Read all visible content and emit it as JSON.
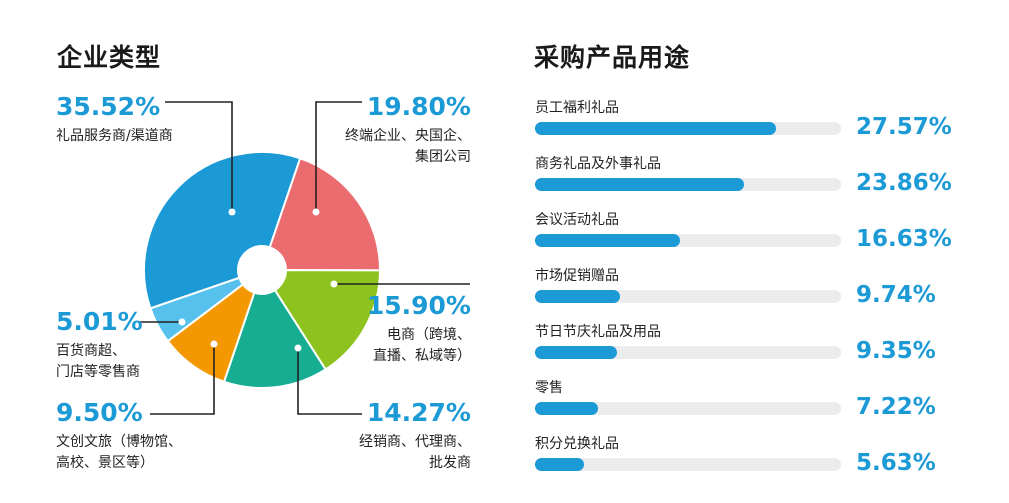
{
  "left_title": "企业类型",
  "right_title": "采购产品用途",
  "chart_data": [
    {
      "type": "pie",
      "title": "企业类型",
      "slices": [
        {
          "value": 35.52,
          "pct_label": "35.52%",
          "label_lines": [
            "礼品服务商/渠道商"
          ],
          "color": "#1b9ad6"
        },
        {
          "value": 19.8,
          "pct_label": "19.80%",
          "label_lines": [
            "终端企业、央国企、",
            "集团公司"
          ],
          "color": "#ea6c6f"
        },
        {
          "value": 15.9,
          "pct_label": "15.90%",
          "label_lines": [
            "电商（跨境、",
            "直播、私域等）"
          ],
          "color": "#8dc21f"
        },
        {
          "value": 14.27,
          "pct_label": "14.27%",
          "label_lines": [
            "经销商、代理商、",
            "批发商"
          ],
          "color": "#16ad93"
        },
        {
          "value": 9.5,
          "pct_label": "9.50%",
          "label_lines": [
            "文创文旅（博物馆、",
            "高校、景区等）"
          ],
          "color": "#f39800"
        },
        {
          "value": 5.01,
          "pct_label": "5.01%",
          "label_lines": [
            "百货商超、",
            "门店等零售商"
          ],
          "color": "#56c1ed"
        }
      ]
    },
    {
      "type": "bar",
      "title": "采购产品用途",
      "max": 100,
      "bar_color": "#1b9ad6",
      "track_color": "#ececec",
      "items": [
        {
          "label": "员工福利礼品",
          "value": 27.57,
          "value_label": "27.57%"
        },
        {
          "label": "商务礼品及外事礼品",
          "value": 23.86,
          "value_label": "23.86%"
        },
        {
          "label": "会议活动礼品",
          "value": 16.63,
          "value_label": "16.63%"
        },
        {
          "label": "市场促销赠品",
          "value": 9.74,
          "value_label": "9.74%"
        },
        {
          "label": "节日节庆礼品及用品",
          "value": 9.35,
          "value_label": "9.35%"
        },
        {
          "label": "零售",
          "value": 7.22,
          "value_label": "7.22%"
        },
        {
          "label": "积分兑换礼品",
          "value": 5.63,
          "value_label": "5.63%"
        }
      ]
    }
  ]
}
